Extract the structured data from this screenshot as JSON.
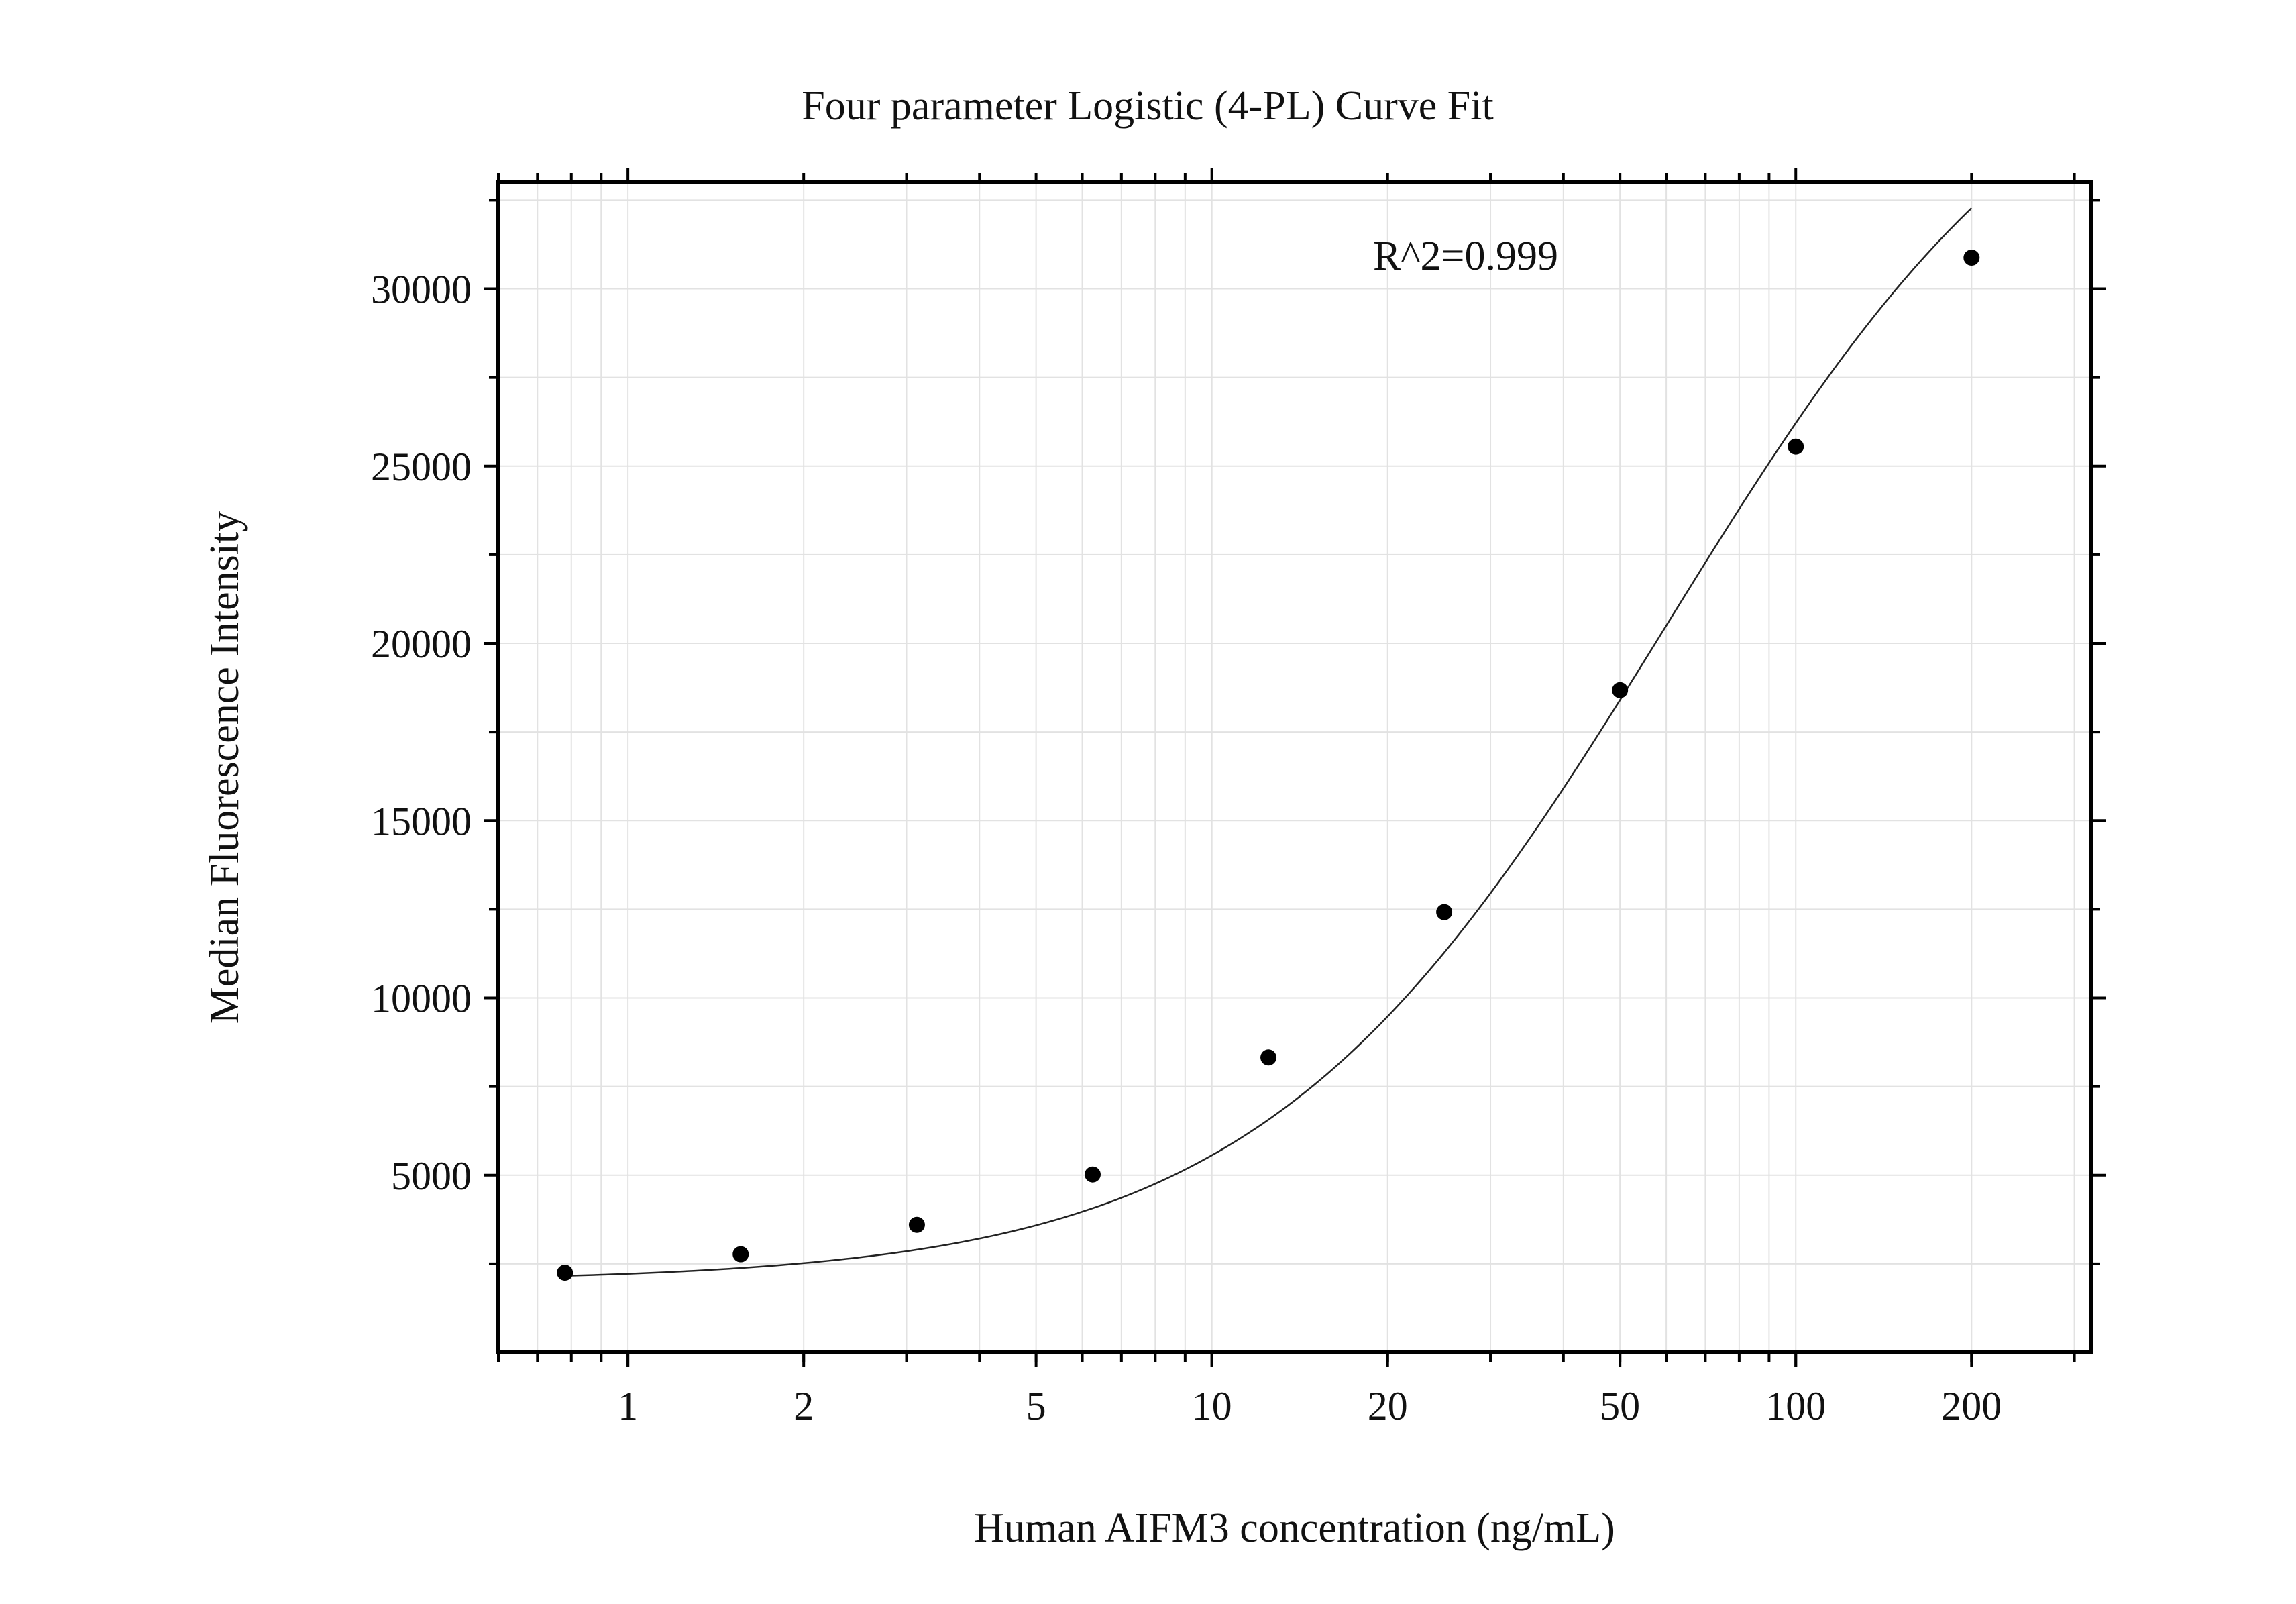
{
  "chart_data": {
    "type": "scatter",
    "title": "Four parameter Logistic (4-PL) Curve Fit",
    "xlabel": "Human AIFM3 concentration (ng/mL)",
    "ylabel": "Median Fluorescence Intensity",
    "x_scale": "log",
    "xlim": [
      0.6,
      320
    ],
    "ylim": [
      0,
      33000
    ],
    "x_ticks": [
      1,
      2,
      5,
      10,
      20,
      50,
      100,
      200
    ],
    "x_tick_labels": [
      "1",
      "2",
      "5",
      "10",
      "20",
      "50",
      "100",
      "200"
    ],
    "y_ticks": [
      5000,
      10000,
      15000,
      20000,
      25000,
      30000
    ],
    "y_tick_labels": [
      "5000",
      "10000",
      "15000",
      "20000",
      "25000",
      "30000"
    ],
    "grid": true,
    "annotation": "R^2=0.999",
    "points": {
      "x": [
        0.78,
        1.56,
        3.125,
        6.25,
        12.5,
        25,
        50,
        100,
        200
      ],
      "y": [
        2250,
        2770,
        3600,
        5020,
        8320,
        12420,
        18680,
        25550,
        30880
      ]
    },
    "fit": {
      "model": "4PL",
      "bottom": 2000,
      "top": 39000,
      "ec50": 60,
      "hill": 1.25,
      "x_range": [
        0.78,
        200
      ]
    }
  }
}
